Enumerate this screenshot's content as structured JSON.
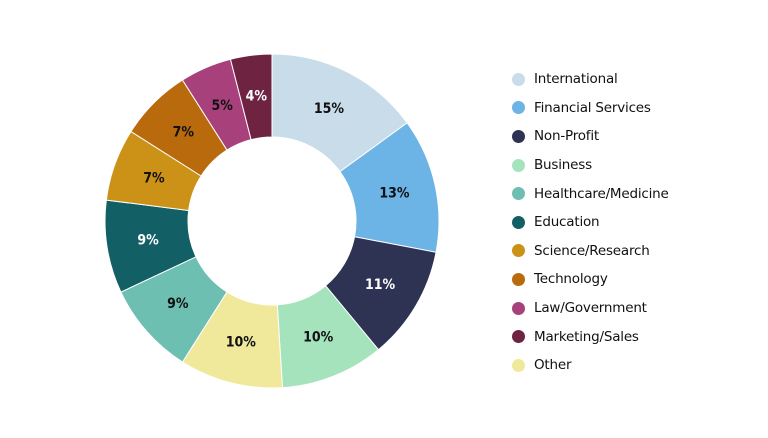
{
  "chart_data": {
    "type": "pie",
    "variant": "donut",
    "title": "",
    "legend_position": "right",
    "categories": [
      "International",
      "Financial Services",
      "Non-Profit",
      "Business",
      "Healthcare/Medicine",
      "Education",
      "Science/Research",
      "Technology",
      "Law/Government",
      "Marketing/Sales",
      "Other"
    ],
    "values": [
      15,
      13,
      11,
      10,
      9,
      9,
      7,
      7,
      5,
      4,
      10
    ],
    "value_labels": [
      "15%",
      "13%",
      "11%",
      "10%",
      "9%",
      "9%",
      "7%",
      "7%",
      "5%",
      "4%",
      "10%"
    ],
    "colors": [
      "#c9dcea",
      "#6cb3e6",
      "#2e3353",
      "#a4e3bc",
      "#6dbfb1",
      "#135f66",
      "#cc9218",
      "#b96a0c",
      "#a8417b",
      "#6e2440",
      "#f0e99b"
    ],
    "label_colors": [
      "#111111",
      "#111111",
      "#ffffff",
      "#111111",
      "#111111",
      "#ffffff",
      "#111111",
      "#111111",
      "#111111",
      "#ffffff",
      "#111111"
    ],
    "plot_order": [
      0,
      1,
      2,
      3,
      10,
      4,
      5,
      6,
      7,
      8,
      9
    ]
  }
}
